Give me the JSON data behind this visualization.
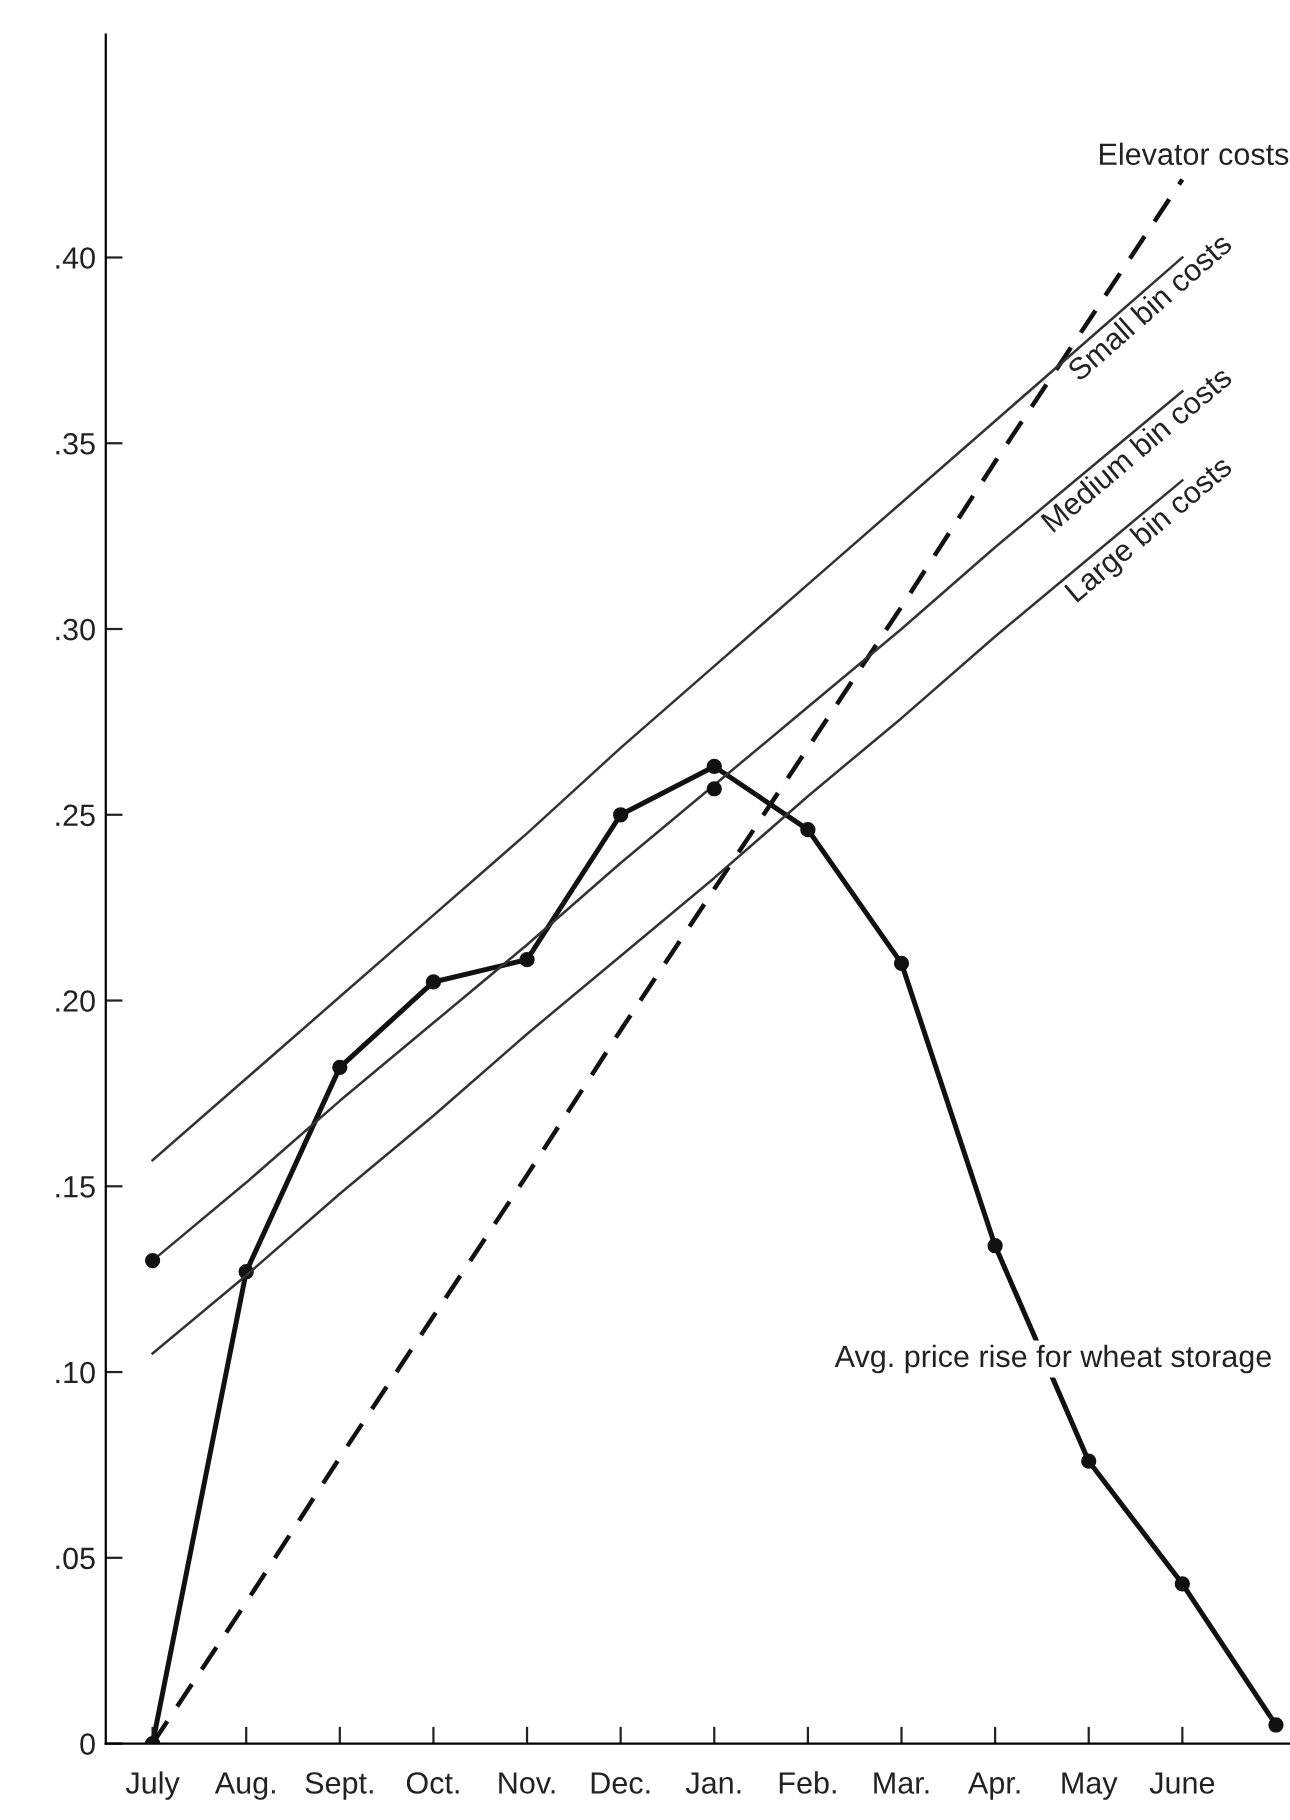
{
  "chart_data": {
    "type": "line",
    "categories": [
      "July",
      "Aug.",
      "Sept.",
      "Oct.",
      "Nov.",
      "Dec.",
      "Jan.",
      "Feb.",
      "Mar.",
      "Apr.",
      "May",
      "June",
      null
    ],
    "ylim": [
      0,
      0.46
    ],
    "yticks": [
      0,
      {
        "value": 0.05,
        "label": ".05"
      },
      {
        "value": 0.1,
        "label": ".10"
      },
      {
        "value": 0.15,
        "label": ".15"
      },
      {
        "value": 0.2,
        "label": ".20"
      },
      {
        "value": 0.25,
        "label": ".25"
      },
      {
        "value": 0.3,
        "label": ".30"
      },
      {
        "value": 0.35,
        "label": ".35"
      },
      {
        "value": 0.4,
        "label": ".40"
      }
    ],
    "grid": false,
    "series": [
      {
        "type": "line",
        "color": "#111111",
        "marker": "circle",
        "line_style": "solid",
        "values": [
          0,
          0.127,
          0.182,
          0.205,
          0.211,
          0.25,
          0.263,
          0.246,
          0.21,
          0.134,
          0.076,
          0.043,
          0.005
        ]
      },
      {
        "type": "scatter",
        "color": "#111111",
        "marker": "circle",
        "values": [
          0.13,
          null,
          null,
          null,
          null,
          null,
          0.257,
          null,
          null,
          null,
          null,
          null,
          null
        ]
      },
      {
        "type": "line",
        "name": "Elevator costs",
        "color": "#111111",
        "marker": "none",
        "line_style": "dashed",
        "values": [
          0,
          0.038,
          0.077,
          0.115,
          0.153,
          0.192,
          0.23,
          0.268,
          0.306,
          0.345,
          0.383,
          0.421,
          null
        ]
      },
      {
        "type": "line",
        "name": "Small bin costs",
        "color": "#333333",
        "marker": "none",
        "line_style": "solid",
        "values": [
          0.157,
          0.179,
          0.201,
          0.223,
          0.245,
          0.268,
          0.29,
          0.312,
          0.334,
          0.356,
          0.378,
          0.4,
          null
        ]
      },
      {
        "type": "line",
        "name": "Medium bin costs",
        "color": "#333333",
        "marker": "none",
        "line_style": "solid",
        "values": [
          0.13,
          0.151,
          0.173,
          0.194,
          0.215,
          0.237,
          0.258,
          0.279,
          0.3,
          0.322,
          0.343,
          0.364,
          null
        ]
      },
      {
        "type": "line",
        "name": "Large bin costs",
        "color": "#333333",
        "marker": "none",
        "line_style": "solid",
        "values": [
          0.105,
          0.126,
          0.148,
          0.169,
          0.191,
          0.212,
          0.233,
          0.255,
          0.276,
          0.298,
          0.319,
          0.34,
          null
        ]
      }
    ],
    "annotations": [
      "Avg. price rise for wheat storage"
    ]
  }
}
